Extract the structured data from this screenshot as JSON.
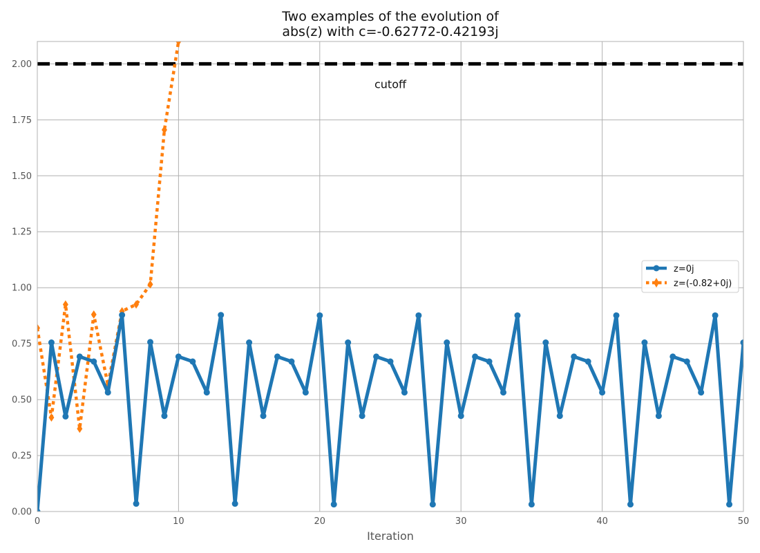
{
  "chart_data": {
    "type": "line",
    "title_lines": [
      "Two examples of the evolution of",
      "abs(z) with c=-0.62772-0.42193j"
    ],
    "xlabel": "Iteration",
    "ylabel": "",
    "xlim": [
      0,
      50
    ],
    "ylim": [
      0,
      2.1
    ],
    "xticks": [
      0,
      10,
      20,
      30,
      40,
      50
    ],
    "yticks": [
      "0.00",
      "0.25",
      "0.50",
      "0.75",
      "1.00",
      "1.25",
      "1.50",
      "1.75",
      "2.00"
    ],
    "grid": true,
    "legend_position": "center-right",
    "cutoff": {
      "value": 2.0,
      "label": "cutoff",
      "label_x": 25,
      "label_y": 1.91,
      "color": "#000000"
    },
    "series": [
      {
        "name": "z=0j",
        "color": "#1f77b4",
        "style": "solid",
        "marker": "circle",
        "x": [
          0,
          1,
          2,
          3,
          4,
          5,
          6,
          7,
          8,
          9,
          10,
          11,
          12,
          13,
          14,
          15,
          16,
          17,
          18,
          19,
          20,
          21,
          22,
          23,
          24,
          25,
          26,
          27,
          28,
          29,
          30,
          31,
          32,
          33,
          34,
          35,
          36,
          37,
          38,
          39,
          40,
          41,
          42,
          43,
          44,
          45,
          46,
          47,
          48,
          49,
          50
        ],
        "y": [
          0.0,
          0.755,
          0.425,
          0.692,
          0.67,
          0.532,
          0.878,
          0.035,
          0.757,
          0.427,
          0.692,
          0.67,
          0.532,
          0.878,
          0.035,
          0.755,
          0.427,
          0.692,
          0.67,
          0.532,
          0.876,
          0.032,
          0.755,
          0.427,
          0.692,
          0.67,
          0.532,
          0.876,
          0.032,
          0.755,
          0.427,
          0.692,
          0.67,
          0.532,
          0.876,
          0.032,
          0.755,
          0.427,
          0.692,
          0.67,
          0.532,
          0.876,
          0.032,
          0.755,
          0.427,
          0.692,
          0.67,
          0.532,
          0.876,
          0.032,
          0.755
        ]
      },
      {
        "name": "z=(-0.82+0j)",
        "color": "#ff7f0e",
        "style": "dotted",
        "marker": "diamond",
        "x": [
          0,
          1,
          2,
          3,
          4,
          5,
          6,
          7,
          8,
          9,
          10
        ],
        "y": [
          0.82,
          0.42,
          0.925,
          0.37,
          0.88,
          0.565,
          0.895,
          0.925,
          1.015,
          1.705,
          2.1
        ]
      }
    ]
  }
}
